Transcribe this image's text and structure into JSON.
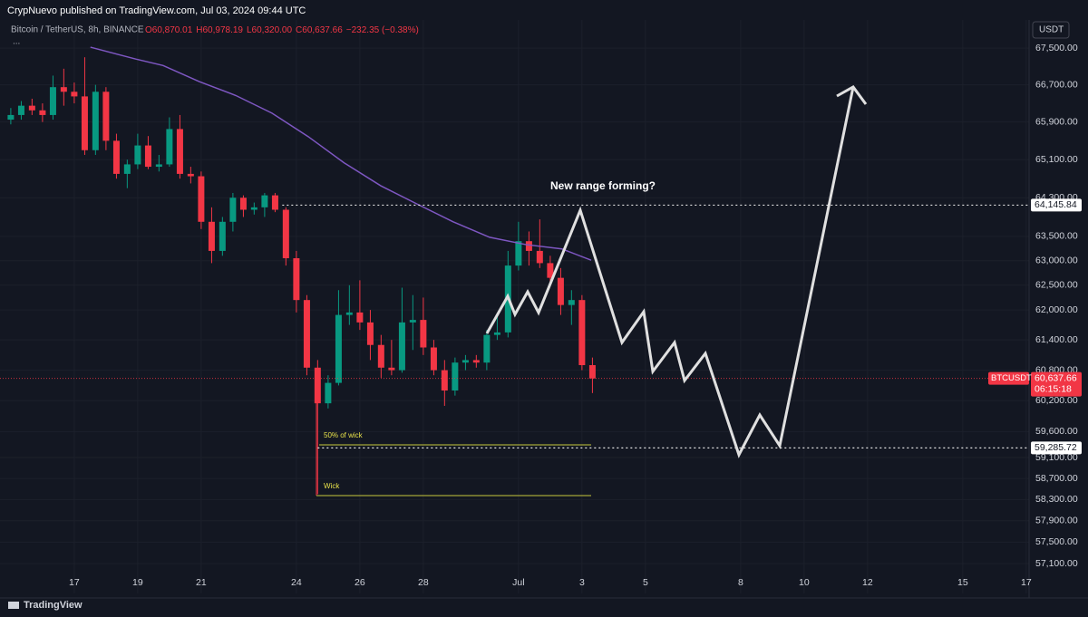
{
  "header": {
    "publisher": "CrypNuevo published on TradingView.com, Jul 03, 2024 09:44 UTC"
  },
  "chart_data": {
    "type": "candlestick",
    "symbol": "Bitcoin / TetherUS, 8h, BINANCE",
    "ohlc_legend": [
      "O60,870.01",
      "H60,978.19",
      "L60,320.00",
      "C60,637.66",
      "−232.35 (−0.38%)"
    ],
    "more": "...",
    "currency": "USDT",
    "log_scale": true,
    "grid": true,
    "up_color": "#089981",
    "down_color": "#f23645",
    "xlim": [
      14.66,
      47.09
    ],
    "ylim": [
      56550,
      68120
    ],
    "xticks": [
      {
        "value": 17,
        "label": "17"
      },
      {
        "value": 19,
        "label": "19"
      },
      {
        "value": 21,
        "label": "21"
      },
      {
        "value": 24,
        "label": "24"
      },
      {
        "value": 26,
        "label": "26"
      },
      {
        "value": 28,
        "label": "28"
      },
      {
        "value": 31,
        "label": "Jul"
      },
      {
        "value": 33,
        "label": "3"
      },
      {
        "value": 35,
        "label": "5"
      },
      {
        "value": 38,
        "label": "8"
      },
      {
        "value": 40,
        "label": "10"
      },
      {
        "value": 42,
        "label": "12"
      },
      {
        "value": 45,
        "label": "15"
      },
      {
        "value": 47,
        "label": "17"
      }
    ],
    "yticks": [
      {
        "value": 67500,
        "label": "67,500.00"
      },
      {
        "value": 66700,
        "label": "66,700.00"
      },
      {
        "value": 65900,
        "label": "65,900.00"
      },
      {
        "value": 65100,
        "label": "65,100.00"
      },
      {
        "value": 64300,
        "label": "64,300.00"
      },
      {
        "value": 63500,
        "label": "63,500.00"
      },
      {
        "value": 63000,
        "label": "63,000.00"
      },
      {
        "value": 62500,
        "label": "62,500.00"
      },
      {
        "value": 62000,
        "label": "62,000.00"
      },
      {
        "value": 61400,
        "label": "61,400.00"
      },
      {
        "value": 60800,
        "label": "60,800.00"
      },
      {
        "value": 60200,
        "label": "60,200.00"
      },
      {
        "value": 59600,
        "label": "59,600.00"
      },
      {
        "value": 59100,
        "label": "59,100.00"
      },
      {
        "value": 58700,
        "label": "58,700.00"
      },
      {
        "value": 58300,
        "label": "58,300.00"
      },
      {
        "value": 57900,
        "label": "57,900.00"
      },
      {
        "value": 57500,
        "label": "57,500.00"
      },
      {
        "value": 57100,
        "label": "57,100.00"
      }
    ],
    "candles": {
      "x": [
        15,
        15.33,
        15.67,
        16,
        16.33,
        16.67,
        17,
        17.33,
        17.67,
        18,
        18.33,
        18.67,
        19,
        19.33,
        19.67,
        20,
        20.33,
        20.67,
        21,
        21.33,
        21.67,
        22,
        22.33,
        22.67,
        23,
        23.33,
        23.67,
        24,
        24.33,
        24.67,
        25,
        25.33,
        25.67,
        26,
        26.33,
        26.67,
        27,
        27.33,
        27.67,
        28,
        28.33,
        28.67,
        29,
        29.33,
        29.67,
        30,
        30.33,
        30.67,
        31,
        31.33,
        31.67,
        32,
        32.33,
        32.67,
        33,
        33.33
      ],
      "open": [
        65950,
        66050,
        66250,
        66150,
        66050,
        66650,
        66550,
        66450,
        65300,
        66550,
        65500,
        64800,
        65000,
        65400,
        64950,
        65000,
        65750,
        64800,
        64750,
        63800,
        63200,
        63800,
        64300,
        64050,
        64100,
        64350,
        64050,
        63050,
        62200,
        60850,
        60150,
        60550,
        61900,
        61950,
        61750,
        61300,
        60850,
        60800,
        61750,
        61800,
        61250,
        60800,
        60400,
        60950,
        61000,
        60950,
        61500,
        61550,
        62900,
        63400,
        63200,
        62950,
        62650,
        62100,
        62200,
        60900
      ],
      "high": [
        66200,
        66350,
        66400,
        66300,
        66900,
        67050,
        66750,
        67300,
        66700,
        66650,
        65650,
        65100,
        65650,
        65600,
        65200,
        66000,
        66050,
        64950,
        64850,
        64100,
        63900,
        64400,
        64350,
        64200,
        64400,
        64400,
        64100,
        63200,
        62300,
        61000,
        60700,
        62400,
        62500,
        62600,
        62000,
        61500,
        61400,
        62450,
        62300,
        62250,
        61400,
        61000,
        61050,
        61100,
        61100,
        61600,
        61900,
        63200,
        63800,
        63600,
        63850,
        63100,
        62850,
        62400,
        62300,
        61050
      ],
      "low": [
        65850,
        65950,
        66050,
        65900,
        65950,
        66250,
        66300,
        65200,
        65200,
        65300,
        64700,
        64500,
        64900,
        64900,
        64850,
        64950,
        64700,
        64600,
        63650,
        62950,
        63100,
        63600,
        63900,
        63950,
        63900,
        64000,
        62900,
        61950,
        60700,
        58400,
        60050,
        60500,
        61700,
        61600,
        61000,
        60650,
        60700,
        60750,
        61200,
        61100,
        60700,
        60100,
        60300,
        60800,
        60850,
        60800,
        61400,
        61450,
        62800,
        62900,
        62850,
        62500,
        61900,
        61700,
        60800,
        60350
      ],
      "close": [
        66050,
        66250,
        66150,
        66050,
        66650,
        66550,
        66450,
        65300,
        66550,
        65500,
        64800,
        65000,
        65400,
        64950,
        65000,
        65750,
        64800,
        64750,
        63800,
        63200,
        63800,
        64300,
        64050,
        64100,
        64350,
        64050,
        63050,
        62200,
        60850,
        60150,
        60550,
        61900,
        61950,
        61750,
        61300,
        60850,
        60800,
        61750,
        61800,
        61250,
        60800,
        60400,
        60950,
        61000,
        60950,
        61500,
        61550,
        62900,
        63400,
        63200,
        62950,
        62650,
        62100,
        62200,
        60900,
        60637.66
      ]
    },
    "moving_average": {
      "color": "#7e57c2",
      "x": [
        17.51,
        18.94,
        19.8,
        20.94,
        22.09,
        23.23,
        24.37,
        25.51,
        26.66,
        27.8,
        28.94,
        30.09,
        31.23,
        32.37,
        33.29
      ],
      "values": [
        67520,
        67260,
        67120,
        66770,
        66470,
        66090,
        65590,
        65030,
        64550,
        64170,
        63800,
        63480,
        63330,
        63240,
        63010
      ]
    },
    "levels": [
      {
        "value": 64145.84,
        "label": "64,145.84"
      },
      {
        "value": 59285.72,
        "label": "59,285.72"
      }
    ],
    "last_price": {
      "value": 60637.66,
      "label": "60,637.66",
      "countdown": "06:15:18",
      "symbol": "BTCUSDT"
    },
    "annotations": {
      "projection": "New range forming?",
      "half_wick": "50% of wick",
      "wick": "Wick"
    }
  },
  "footer": {
    "brand": "TradingView"
  }
}
